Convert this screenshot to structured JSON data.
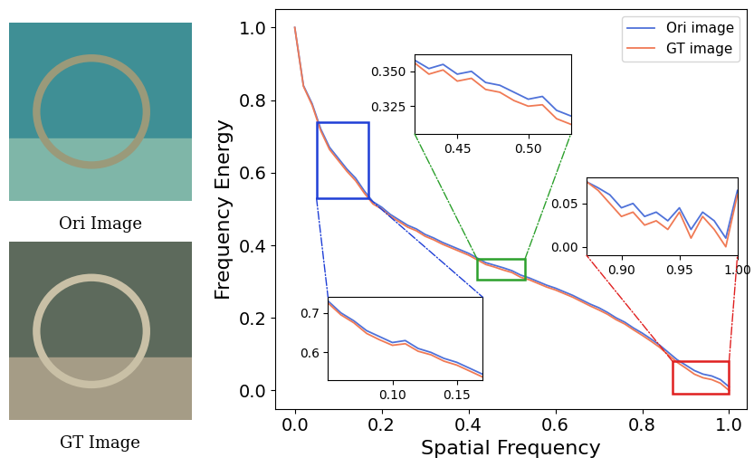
{
  "images": [
    {
      "caption": "Ori Image"
    },
    {
      "caption": "GT Image"
    }
  ],
  "chart_data": [
    {
      "type": "line",
      "xlabel": "Spatial Frequency",
      "ylabel": "Frequency Energy",
      "x": [
        0.0,
        0.02,
        0.04,
        0.06,
        0.08,
        0.1,
        0.12,
        0.14,
        0.16,
        0.18,
        0.2,
        0.22,
        0.24,
        0.26,
        0.28,
        0.3,
        0.32,
        0.34,
        0.36,
        0.38,
        0.4,
        0.42,
        0.44,
        0.46,
        0.48,
        0.5,
        0.52,
        0.54,
        0.56,
        0.58,
        0.6,
        0.62,
        0.64,
        0.66,
        0.68,
        0.7,
        0.72,
        0.74,
        0.76,
        0.78,
        0.8,
        0.82,
        0.84,
        0.86,
        0.88,
        0.9,
        0.92,
        0.94,
        0.96,
        0.98,
        1.0
      ],
      "series": [
        {
          "name": "Ori image",
          "color": "#4f72d9",
          "values": [
            1.0,
            0.84,
            0.79,
            0.72,
            0.67,
            0.64,
            0.61,
            0.585,
            0.55,
            0.52,
            0.505,
            0.485,
            0.47,
            0.455,
            0.445,
            0.43,
            0.42,
            0.408,
            0.398,
            0.388,
            0.378,
            0.365,
            0.352,
            0.345,
            0.338,
            0.33,
            0.318,
            0.31,
            0.3,
            0.29,
            0.282,
            0.272,
            0.262,
            0.25,
            0.238,
            0.228,
            0.215,
            0.2,
            0.188,
            0.172,
            0.158,
            0.142,
            0.125,
            0.105,
            0.085,
            0.07,
            0.055,
            0.045,
            0.04,
            0.03,
            0.01
          ]
        },
        {
          "name": "GT image",
          "color": "#f07a55",
          "values": [
            1.0,
            0.838,
            0.786,
            0.715,
            0.664,
            0.634,
            0.604,
            0.578,
            0.544,
            0.514,
            0.5,
            0.48,
            0.465,
            0.45,
            0.44,
            0.425,
            0.415,
            0.403,
            0.393,
            0.383,
            0.373,
            0.36,
            0.347,
            0.34,
            0.332,
            0.325,
            0.312,
            0.305,
            0.295,
            0.285,
            0.277,
            0.267,
            0.257,
            0.245,
            0.233,
            0.222,
            0.21,
            0.195,
            0.183,
            0.167,
            0.152,
            0.136,
            0.119,
            0.098,
            0.078,
            0.062,
            0.045,
            0.035,
            0.03,
            0.02,
            0.0
          ]
        }
      ],
      "xlim": [
        -0.045,
        1.04
      ],
      "ylim": [
        -0.05,
        1.05
      ],
      "xticks": [
        0.0,
        0.2,
        0.4,
        0.6,
        0.8,
        1.0
      ],
      "yticks": [
        0.0,
        0.2,
        0.4,
        0.6,
        0.8,
        1.0
      ],
      "legend": "upper right"
    },
    {
      "type": "line",
      "color": "#1f3fd6",
      "x": [
        0.05,
        0.06,
        0.07,
        0.08,
        0.09,
        0.1,
        0.11,
        0.12,
        0.13,
        0.14,
        0.15,
        0.16,
        0.17
      ],
      "series": [
        {
          "name": "Ori image",
          "color": "#4f72d9",
          "values": [
            0.73,
            0.7,
            0.68,
            0.655,
            0.64,
            0.625,
            0.63,
            0.61,
            0.6,
            0.585,
            0.575,
            0.56,
            0.545
          ]
        },
        {
          "name": "GT image",
          "color": "#f07a55",
          "values": [
            0.725,
            0.695,
            0.675,
            0.648,
            0.632,
            0.618,
            0.622,
            0.603,
            0.594,
            0.578,
            0.568,
            0.553,
            0.538
          ]
        }
      ],
      "xlim": [
        0.05,
        0.17
      ],
      "ylim": [
        0.53,
        0.74
      ],
      "xticks": [
        {
          "value": 0.1,
          "label": "0.10"
        },
        0.15
      ],
      "yticks": [
        0.6,
        0.7
      ]
    },
    {
      "type": "line",
      "color": "#2ca02c",
      "x": [
        0.42,
        0.43,
        0.44,
        0.45,
        0.46,
        0.47,
        0.48,
        0.49,
        0.5,
        0.51,
        0.52,
        0.53
      ],
      "series": [
        {
          "name": "Ori image",
          "color": "#4f72d9",
          "values": [
            0.358,
            0.352,
            0.355,
            0.348,
            0.35,
            0.342,
            0.34,
            0.335,
            0.33,
            0.332,
            0.322,
            0.318
          ]
        },
        {
          "name": "GT image",
          "color": "#f07a55",
          "values": [
            0.356,
            0.348,
            0.351,
            0.343,
            0.345,
            0.337,
            0.335,
            0.329,
            0.325,
            0.326,
            0.316,
            0.312
          ]
        }
      ],
      "xlim": [
        0.42,
        0.53
      ],
      "ylim": [
        0.305,
        0.362
      ],
      "xticks": [
        0.45,
        {
          "value": 0.5,
          "label": "0.50"
        }
      ],
      "yticks": [
        0.325,
        {
          "value": 0.35,
          "label": "0.350"
        }
      ]
    },
    {
      "type": "line",
      "color": "#e02020",
      "x": [
        0.87,
        0.88,
        0.89,
        0.9,
        0.91,
        0.92,
        0.93,
        0.94,
        0.95,
        0.96,
        0.97,
        0.98,
        0.99,
        1.0
      ],
      "series": [
        {
          "name": "Ori image",
          "color": "#4f72d9",
          "values": [
            0.075,
            0.068,
            0.06,
            0.045,
            0.05,
            0.035,
            0.04,
            0.03,
            0.045,
            0.02,
            0.04,
            0.03,
            0.01,
            0.065
          ]
        },
        {
          "name": "GT image",
          "color": "#f07a55",
          "values": [
            0.075,
            0.065,
            0.05,
            0.035,
            0.04,
            0.025,
            0.03,
            0.02,
            0.04,
            0.01,
            0.035,
            0.02,
            0.0,
            0.06
          ]
        }
      ],
      "xlim": [
        0.87,
        1.0
      ],
      "ylim": [
        -0.01,
        0.08
      ],
      "xticks": [
        {
          "value": 0.9,
          "label": "0.90"
        },
        0.95,
        {
          "value": 1.0,
          "label": "1.00"
        }
      ],
      "yticks": [
        {
          "value": 0.0,
          "label": "0.00"
        },
        0.05
      ]
    }
  ]
}
